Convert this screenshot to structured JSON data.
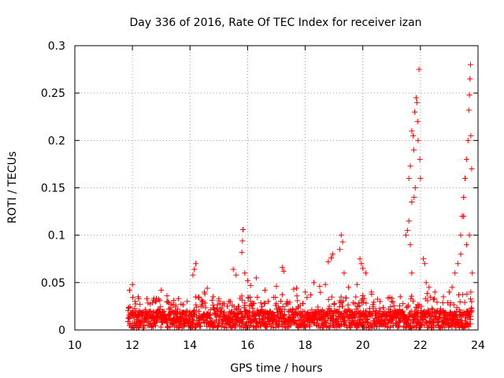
{
  "chart_data": {
    "type": "scatter",
    "title": "Day 336 of 2016, Rate Of TEC Index for receiver izan",
    "xlabel": "GPS time / hours",
    "ylabel": "ROTI / TECUs",
    "xlim": [
      10,
      24
    ],
    "ylim": [
      0,
      0.3
    ],
    "xticks": [
      10,
      12,
      14,
      16,
      18,
      20,
      22,
      24
    ],
    "yticks": [
      0,
      0.05,
      0.1,
      0.15,
      0.2,
      0.25,
      0.3
    ],
    "xtick_labels": [
      "10",
      "12",
      "14",
      "16",
      "18",
      "20",
      "22",
      "24"
    ],
    "ytick_labels": [
      "0",
      "0.05",
      "0.1",
      "0.15",
      "0.2",
      "0.25",
      "0.3"
    ],
    "grid": true,
    "marker": "+",
    "color": "#ff0000",
    "data_start_hour": 11.85,
    "data_end_hour": 23.8,
    "background_level": 0.01,
    "series": [
      {
        "name": "ROTI",
        "points": [
          [
            11.9,
            0.042
          ],
          [
            12.0,
            0.048
          ],
          [
            12.2,
            0.035
          ],
          [
            12.5,
            0.033
          ],
          [
            12.8,
            0.03
          ],
          [
            13.0,
            0.042
          ],
          [
            13.2,
            0.036
          ],
          [
            13.6,
            0.033
          ],
          [
            13.9,
            0.03
          ],
          [
            14.1,
            0.058
          ],
          [
            14.15,
            0.064
          ],
          [
            14.2,
            0.07
          ],
          [
            14.5,
            0.04
          ],
          [
            14.6,
            0.044
          ],
          [
            14.8,
            0.035
          ],
          [
            15.0,
            0.033
          ],
          [
            15.4,
            0.03
          ],
          [
            15.5,
            0.064
          ],
          [
            15.6,
            0.058
          ],
          [
            15.8,
            0.082
          ],
          [
            15.82,
            0.094
          ],
          [
            15.84,
            0.106
          ],
          [
            15.9,
            0.06
          ],
          [
            16.0,
            0.052
          ],
          [
            16.1,
            0.047
          ],
          [
            16.3,
            0.055
          ],
          [
            16.6,
            0.042
          ],
          [
            17.0,
            0.046
          ],
          [
            17.2,
            0.066
          ],
          [
            17.25,
            0.062
          ],
          [
            17.6,
            0.043
          ],
          [
            17.7,
            0.044
          ],
          [
            18.0,
            0.04
          ],
          [
            18.3,
            0.05
          ],
          [
            18.5,
            0.046
          ],
          [
            18.7,
            0.048
          ],
          [
            18.8,
            0.072
          ],
          [
            18.9,
            0.076
          ],
          [
            18.95,
            0.08
          ],
          [
            19.2,
            0.085
          ],
          [
            19.25,
            0.1
          ],
          [
            19.3,
            0.093
          ],
          [
            19.35,
            0.06
          ],
          [
            19.5,
            0.045
          ],
          [
            19.8,
            0.048
          ],
          [
            19.9,
            0.075
          ],
          [
            19.95,
            0.07
          ],
          [
            20.0,
            0.065
          ],
          [
            20.1,
            0.06
          ],
          [
            20.3,
            0.04
          ],
          [
            20.6,
            0.03
          ],
          [
            21.0,
            0.03
          ],
          [
            21.3,
            0.035
          ],
          [
            21.5,
            0.1
          ],
          [
            21.55,
            0.105
          ],
          [
            21.6,
            0.16
          ],
          [
            21.65,
            0.173
          ],
          [
            21.7,
            0.21
          ],
          [
            21.75,
            0.205
          ],
          [
            21.77,
            0.19
          ],
          [
            21.8,
            0.23
          ],
          [
            21.85,
            0.245
          ],
          [
            21.88,
            0.24
          ],
          [
            21.9,
            0.22
          ],
          [
            21.92,
            0.2
          ],
          [
            21.95,
            0.275
          ],
          [
            21.98,
            0.18
          ],
          [
            22.0,
            0.16
          ],
          [
            21.7,
            0.135
          ],
          [
            21.6,
            0.115
          ],
          [
            21.65,
            0.09
          ],
          [
            21.7,
            0.06
          ],
          [
            21.78,
            0.14
          ],
          [
            21.82,
            0.15
          ],
          [
            22.1,
            0.075
          ],
          [
            22.15,
            0.07
          ],
          [
            22.2,
            0.05
          ],
          [
            22.3,
            0.045
          ],
          [
            22.5,
            0.04
          ],
          [
            22.8,
            0.035
          ],
          [
            23.0,
            0.04
          ],
          [
            23.1,
            0.045
          ],
          [
            23.2,
            0.06
          ],
          [
            23.3,
            0.07
          ],
          [
            23.4,
            0.1
          ],
          [
            23.45,
            0.12
          ],
          [
            23.5,
            0.14
          ],
          [
            23.55,
            0.16
          ],
          [
            23.6,
            0.18
          ],
          [
            23.65,
            0.2
          ],
          [
            23.68,
            0.232
          ],
          [
            23.7,
            0.248
          ],
          [
            23.72,
            0.265
          ],
          [
            23.74,
            0.28
          ],
          [
            23.75,
            0.205
          ],
          [
            23.78,
            0.17
          ],
          [
            23.8,
            0.06
          ],
          [
            23.6,
            0.09
          ],
          [
            23.5,
            0.12
          ],
          [
            23.4,
            0.08
          ],
          [
            23.7,
            0.1
          ],
          [
            23.75,
            0.04
          ]
        ]
      }
    ]
  }
}
